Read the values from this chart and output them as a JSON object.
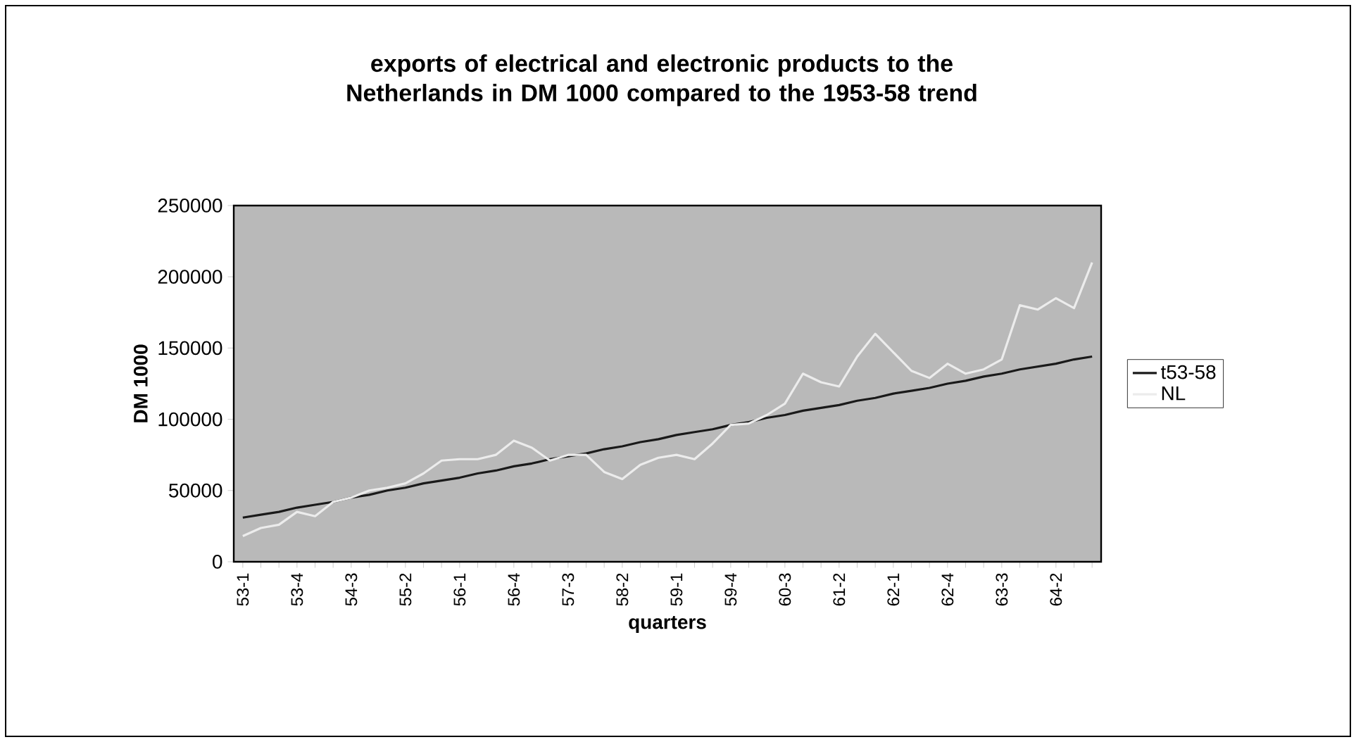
{
  "chart_data": {
    "type": "line",
    "title": "exports of electrical and electronic products to the Netherlands in DM 1000 compared to the 1953-58 trend",
    "xlabel": "quarters",
    "ylabel": "DM 1000",
    "categories": [
      "53-1",
      null,
      null,
      "53-4",
      null,
      null,
      "54-3",
      null,
      null,
      "55-2",
      null,
      null,
      "56-1",
      null,
      null,
      "56-4",
      null,
      null,
      "57-3",
      null,
      null,
      "58-2",
      null,
      null,
      "59-1",
      null,
      null,
      "59-4",
      null,
      null,
      "60-3",
      null,
      null,
      "61-2",
      null,
      null,
      "62-1",
      null,
      null,
      "62-4",
      null,
      null,
      "63-3",
      null,
      null,
      "64-2",
      null,
      null
    ],
    "series": [
      {
        "name": "t53-58",
        "color": "#1a1a1a",
        "values": [
          31000,
          33000,
          35000,
          38000,
          40000,
          42000,
          45000,
          47000,
          50000,
          52000,
          55000,
          57000,
          59000,
          62000,
          64000,
          67000,
          69000,
          72000,
          74000,
          76000,
          79000,
          81000,
          84000,
          86000,
          89000,
          91000,
          93000,
          96000,
          98000,
          101000,
          103000,
          106000,
          108000,
          110000,
          113000,
          115000,
          118000,
          120000,
          122000,
          125000,
          127000,
          130000,
          132000,
          135000,
          137000,
          139000,
          142000,
          144000
        ]
      },
      {
        "name": "NL",
        "color": "#ececec",
        "values": [
          18000,
          23700,
          26000,
          35000,
          32000,
          42000,
          45000,
          50000,
          52000,
          55000,
          62000,
          71000,
          72000,
          72000,
          75000,
          85000,
          80000,
          71000,
          75000,
          75000,
          63000,
          58000,
          68000,
          73000,
          75000,
          72000,
          83000,
          96000,
          97000,
          103000,
          111000,
          132000,
          126000,
          123000,
          144000,
          160000,
          147000,
          134000,
          129000,
          139000,
          132000,
          135000,
          142000,
          180000,
          177000,
          185000,
          178000,
          210000
        ]
      }
    ],
    "ylim": [
      0,
      250000
    ],
    "yticks": [
      0,
      50000,
      100000,
      150000,
      200000,
      250000
    ],
    "legend": "right",
    "marker": "none",
    "line_style": "solid"
  }
}
